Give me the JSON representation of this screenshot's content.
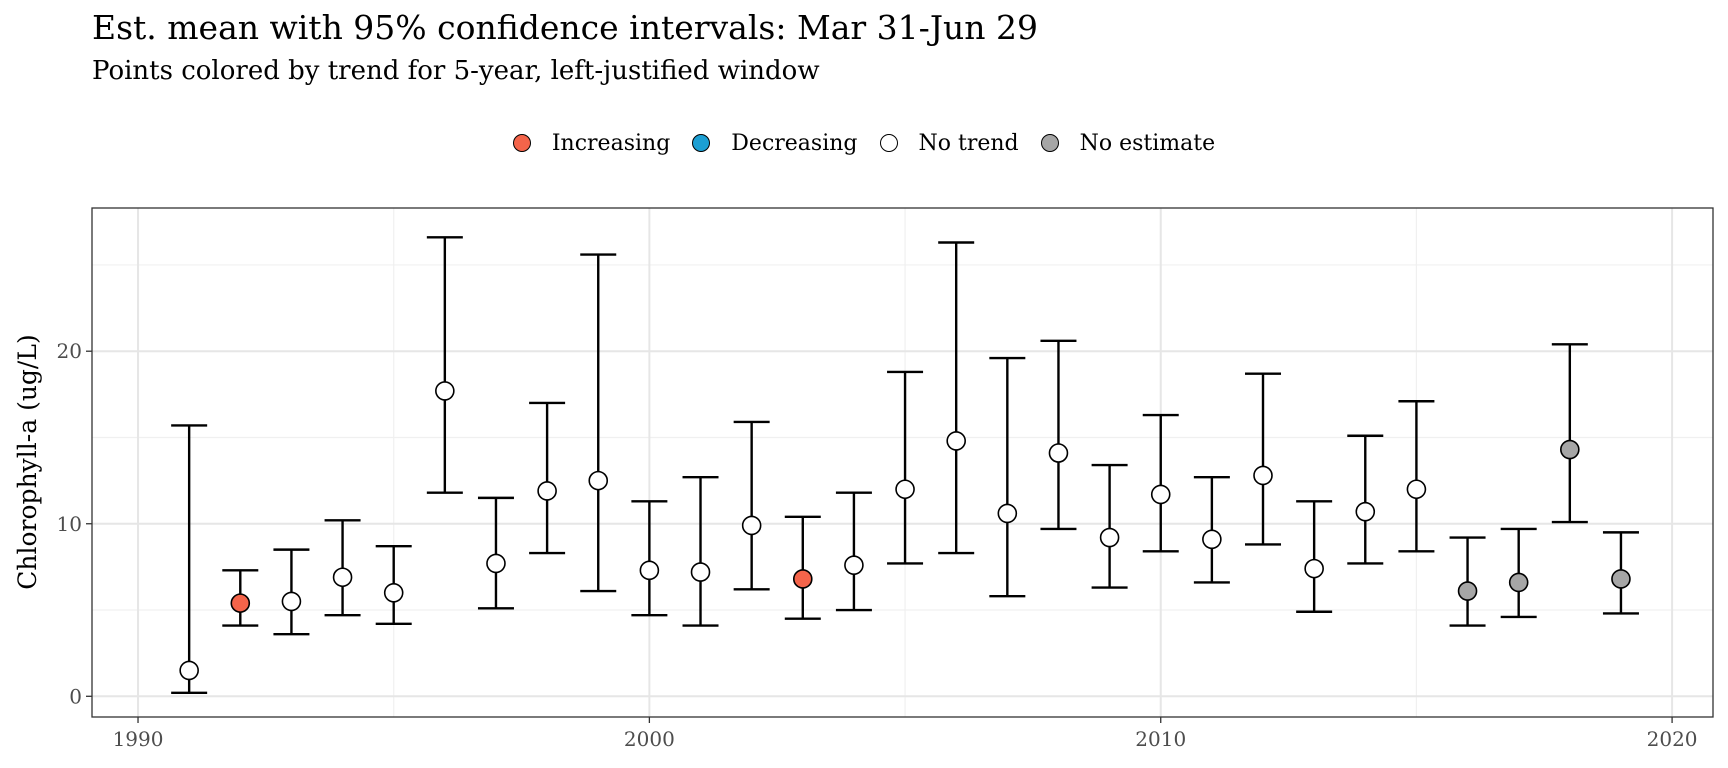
{
  "chart_data": {
    "type": "errorbar",
    "title": "Est. mean with 95% confidence intervals: Mar 31-Jun 29",
    "subtitle": "Points colored by trend for 5-year, left-justified window",
    "xlabel": "",
    "ylabel": "Chlorophyll-a (ug/L)",
    "xlim": [
      1989.1,
      2020.8
    ],
    "ylim": [
      -1.2,
      28.3
    ],
    "x_ticks": [
      1990,
      2000,
      2010,
      2020
    ],
    "y_ticks": [
      0,
      10,
      20
    ],
    "legend": {
      "position": "top",
      "entries": [
        {
          "label": "Increasing",
          "color": "#f4644a"
        },
        {
          "label": "Decreasing",
          "color": "#1c9fd3"
        },
        {
          "label": "No trend",
          "color": "#ffffff"
        },
        {
          "label": "No estimate",
          "color": "#a6a6a6"
        }
      ]
    },
    "points": [
      {
        "year": 1991,
        "mean": 1.5,
        "lower": 0.2,
        "upper": 15.7,
        "trend": "No trend"
      },
      {
        "year": 1992,
        "mean": 5.4,
        "lower": 4.1,
        "upper": 7.3,
        "trend": "Increasing"
      },
      {
        "year": 1993,
        "mean": 5.5,
        "lower": 3.6,
        "upper": 8.5,
        "trend": "No trend"
      },
      {
        "year": 1994,
        "mean": 6.9,
        "lower": 4.7,
        "upper": 10.2,
        "trend": "No trend"
      },
      {
        "year": 1995,
        "mean": 6.0,
        "lower": 4.2,
        "upper": 8.7,
        "trend": "No trend"
      },
      {
        "year": 1996,
        "mean": 17.7,
        "lower": 11.8,
        "upper": 26.6,
        "trend": "No trend"
      },
      {
        "year": 1997,
        "mean": 7.7,
        "lower": 5.1,
        "upper": 11.5,
        "trend": "No trend"
      },
      {
        "year": 1998,
        "mean": 11.9,
        "lower": 8.3,
        "upper": 17.0,
        "trend": "No trend"
      },
      {
        "year": 1999,
        "mean": 12.5,
        "lower": 6.1,
        "upper": 25.6,
        "trend": "No trend"
      },
      {
        "year": 2000,
        "mean": 7.3,
        "lower": 4.7,
        "upper": 11.3,
        "trend": "No trend"
      },
      {
        "year": 2001,
        "mean": 7.2,
        "lower": 4.1,
        "upper": 12.7,
        "trend": "No trend"
      },
      {
        "year": 2002,
        "mean": 9.9,
        "lower": 6.2,
        "upper": 15.9,
        "trend": "No trend"
      },
      {
        "year": 2003,
        "mean": 6.8,
        "lower": 4.5,
        "upper": 10.4,
        "trend": "Increasing"
      },
      {
        "year": 2004,
        "mean": 7.6,
        "lower": 5.0,
        "upper": 11.8,
        "trend": "No trend"
      },
      {
        "year": 2005,
        "mean": 12.0,
        "lower": 7.7,
        "upper": 18.8,
        "trend": "No trend"
      },
      {
        "year": 2006,
        "mean": 14.8,
        "lower": 8.3,
        "upper": 26.3,
        "trend": "No trend"
      },
      {
        "year": 2007,
        "mean": 10.6,
        "lower": 5.8,
        "upper": 19.6,
        "trend": "No trend"
      },
      {
        "year": 2008,
        "mean": 14.1,
        "lower": 9.7,
        "upper": 20.6,
        "trend": "No trend"
      },
      {
        "year": 2009,
        "mean": 9.2,
        "lower": 6.3,
        "upper": 13.4,
        "trend": "No trend"
      },
      {
        "year": 2010,
        "mean": 11.7,
        "lower": 8.4,
        "upper": 16.3,
        "trend": "No trend"
      },
      {
        "year": 2011,
        "mean": 9.1,
        "lower": 6.6,
        "upper": 12.7,
        "trend": "No trend"
      },
      {
        "year": 2012,
        "mean": 12.8,
        "lower": 8.8,
        "upper": 18.7,
        "trend": "No trend"
      },
      {
        "year": 2013,
        "mean": 7.4,
        "lower": 4.9,
        "upper": 11.3,
        "trend": "No trend"
      },
      {
        "year": 2014,
        "mean": 10.7,
        "lower": 7.7,
        "upper": 15.1,
        "trend": "No trend"
      },
      {
        "year": 2015,
        "mean": 12.0,
        "lower": 8.4,
        "upper": 17.1,
        "trend": "No trend"
      },
      {
        "year": 2016,
        "mean": 6.1,
        "lower": 4.1,
        "upper": 9.2,
        "trend": "No estimate"
      },
      {
        "year": 2017,
        "mean": 6.6,
        "lower": 4.6,
        "upper": 9.7,
        "trend": "No estimate"
      },
      {
        "year": 2018,
        "mean": 14.3,
        "lower": 10.1,
        "upper": 20.4,
        "trend": "No estimate"
      },
      {
        "year": 2019,
        "mean": 6.8,
        "lower": 4.8,
        "upper": 9.5,
        "trend": "No estimate"
      }
    ]
  }
}
